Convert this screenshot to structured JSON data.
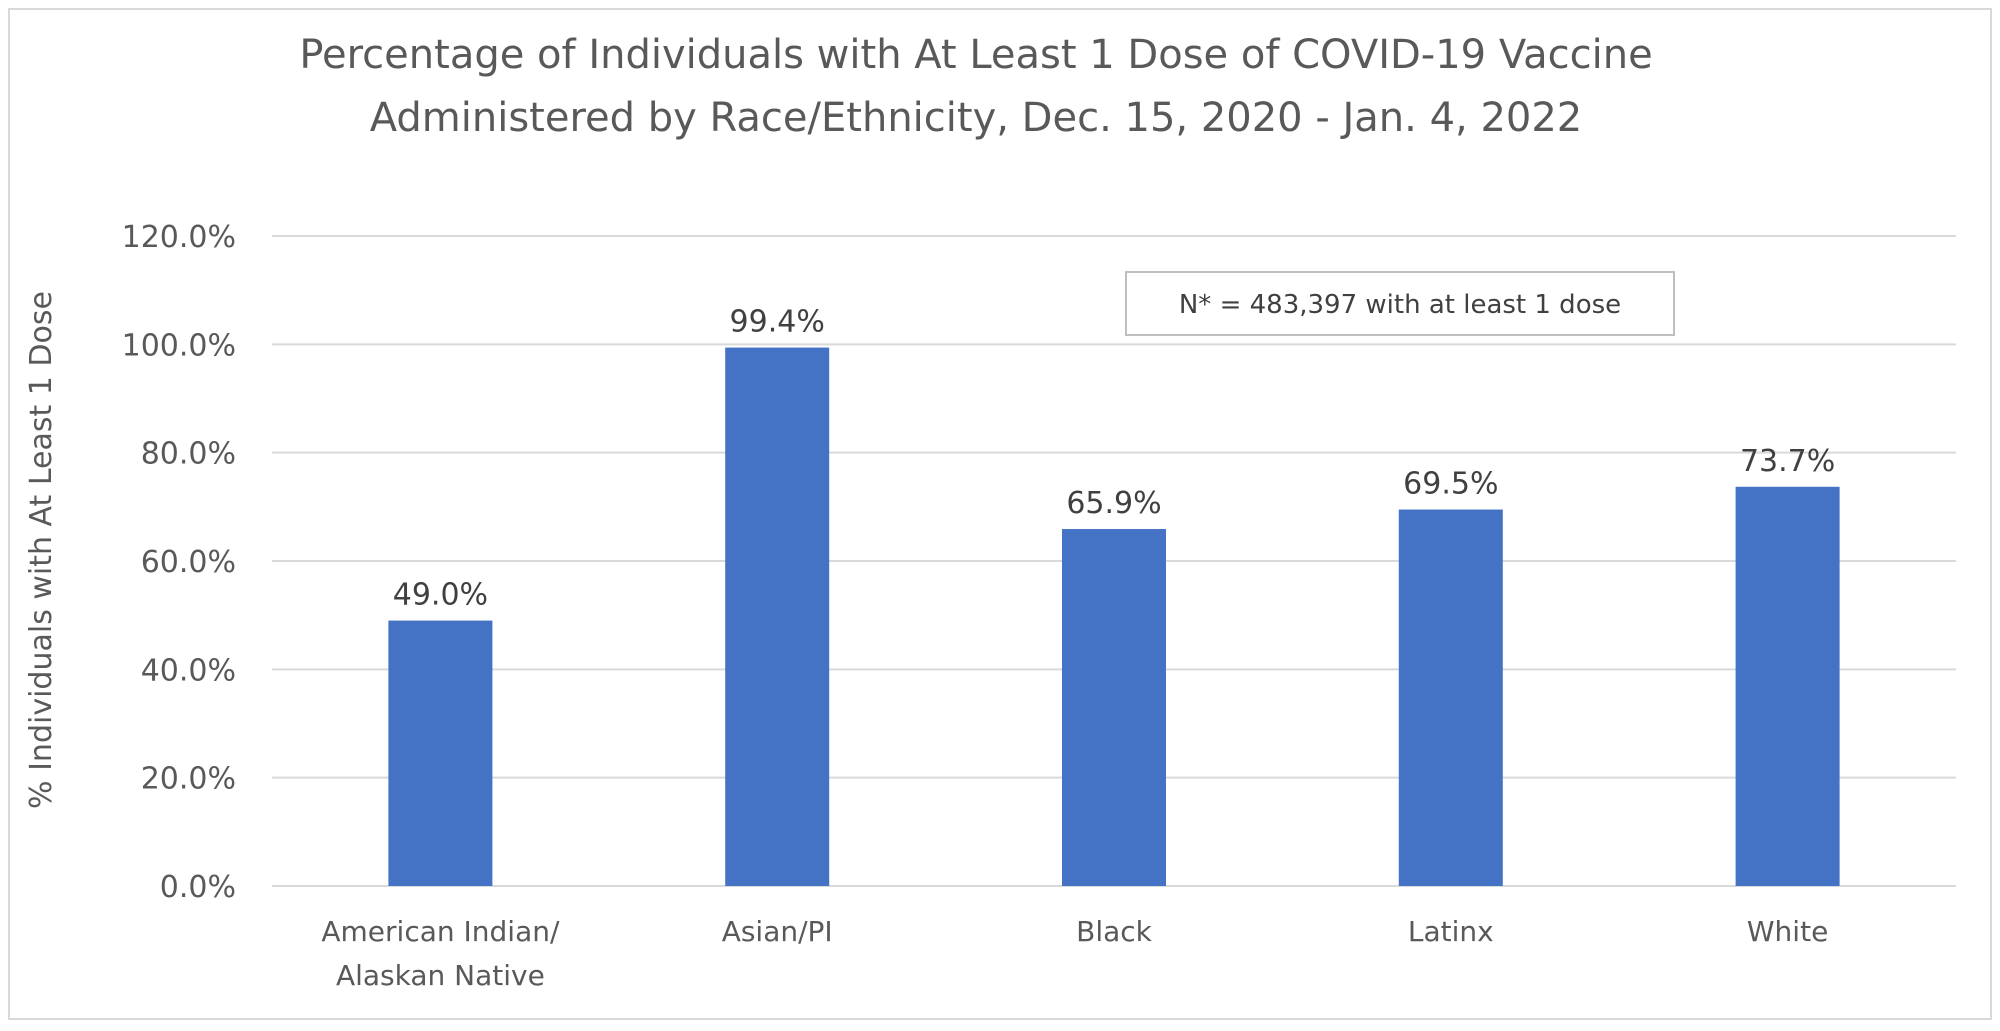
{
  "chart_data": {
    "type": "bar",
    "title": [
      "Percentage of Individuals with At Least 1 Dose of COVID-19 Vaccine",
      "Administered by Race/Ethnicity, Dec. 15, 2020 - Jan. 4, 2022"
    ],
    "ylabel": "% Individuals with At Least 1 Dose",
    "xlabel": "",
    "categories": [
      [
        "American Indian/",
        "Alaskan Native"
      ],
      [
        "Asian/PI"
      ],
      [
        "Black"
      ],
      [
        "Latinx"
      ],
      [
        "White"
      ]
    ],
    "values": [
      49.0,
      99.4,
      65.9,
      69.5,
      73.7
    ],
    "data_labels": [
      "49.0%",
      "99.4%",
      "65.9%",
      "69.5%",
      "73.7%"
    ],
    "ylim": [
      0,
      120
    ],
    "yticks": [
      0,
      20,
      40,
      60,
      80,
      100,
      120
    ],
    "ytick_labels": [
      "0.0%",
      "20.0%",
      "40.0%",
      "60.0%",
      "80.0%",
      "100.0%",
      "120.0%"
    ],
    "grid": true,
    "legend": "none",
    "annotation": "N* = 483,397 with at least 1 dose",
    "bar_color": "#4472c4",
    "grid_color": "#d9d9d9"
  }
}
